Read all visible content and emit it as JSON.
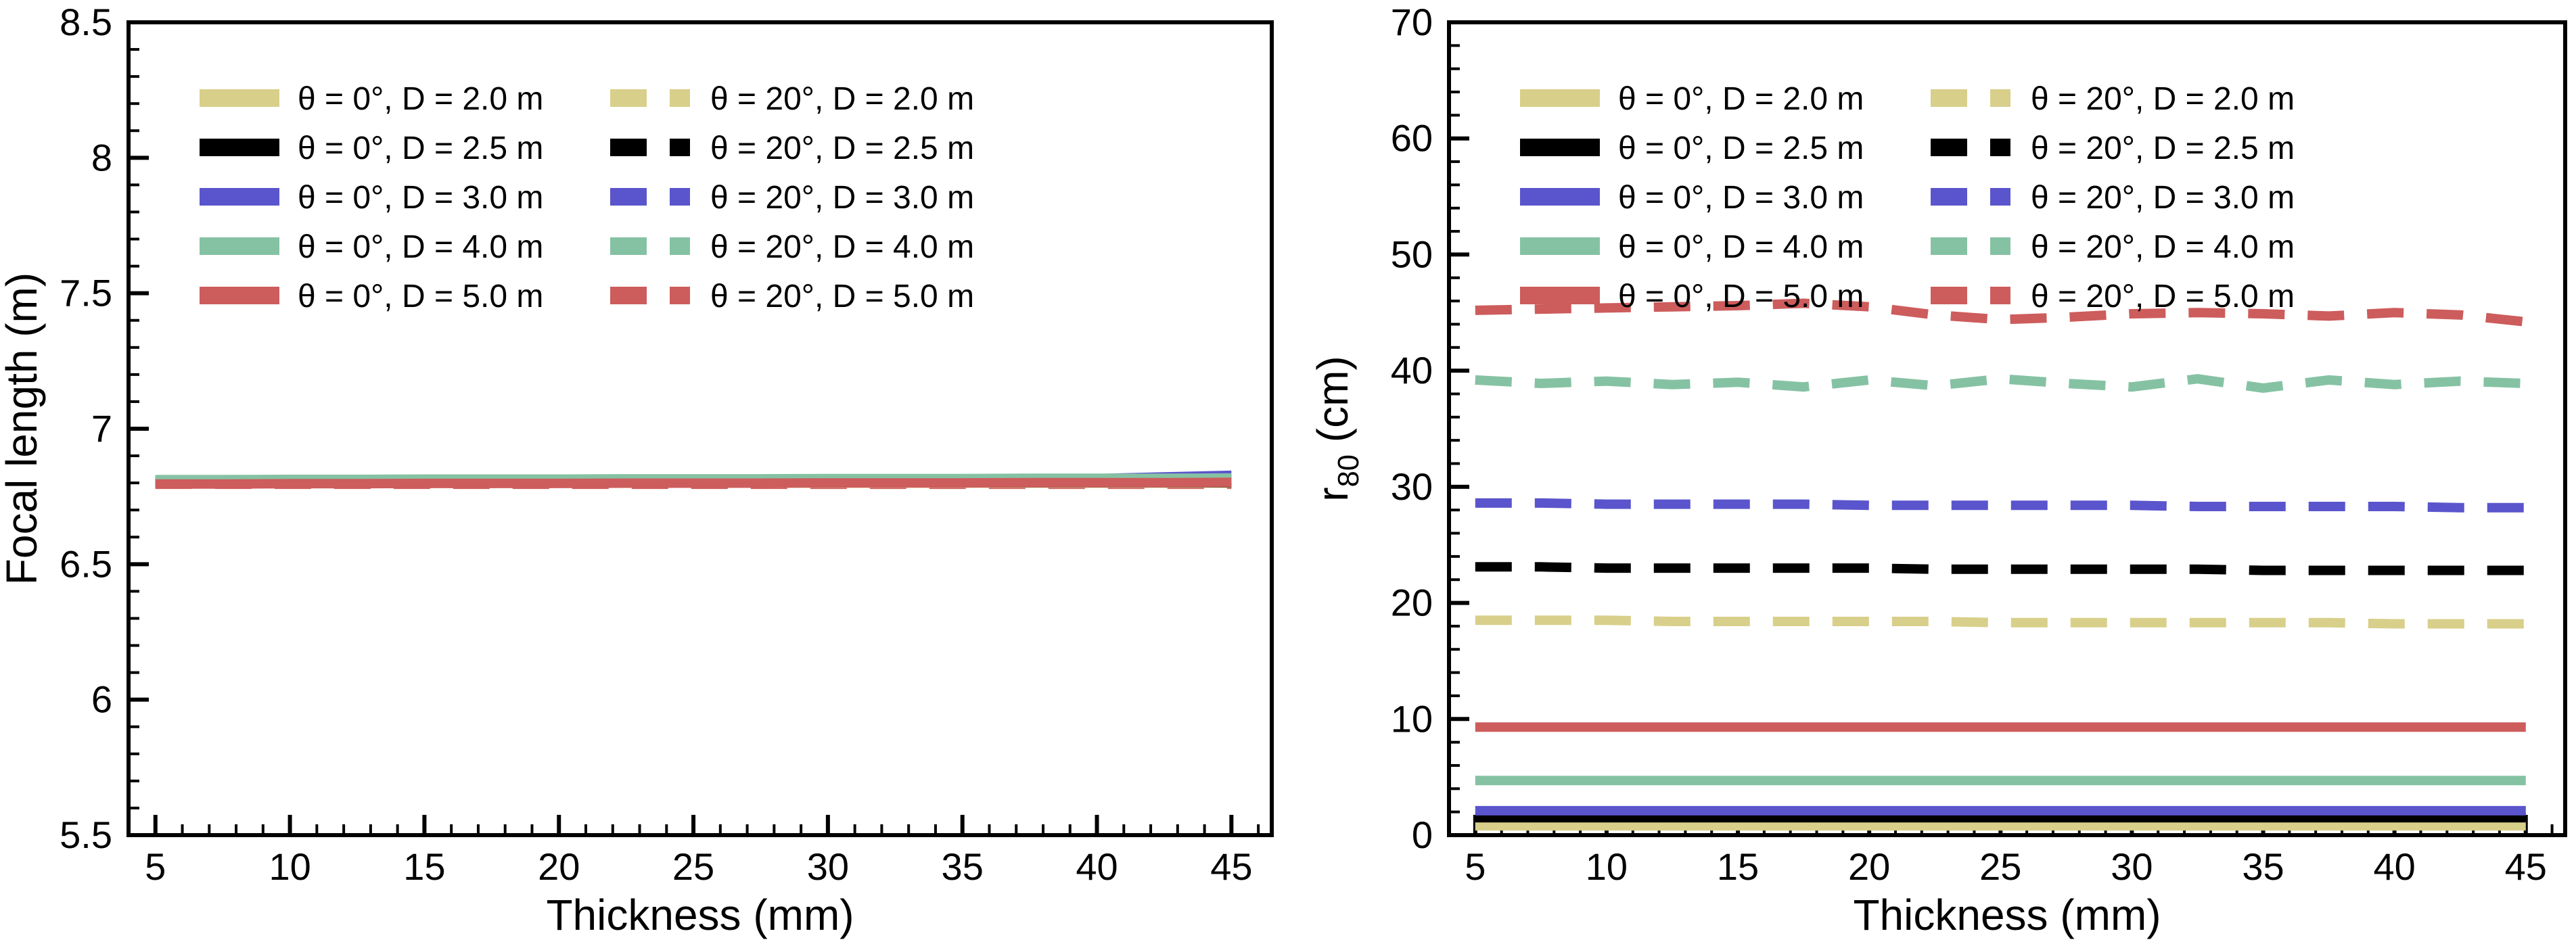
{
  "figure": {
    "background": "#ffffff",
    "frame_color": "#000000",
    "palette": {
      "D_2.0": "#d8cf8a",
      "D_2.5": "#000000",
      "D_3.0": "#5a55cc",
      "D_4.0": "#85c2a3",
      "D_5.0": "#cd5c5c"
    }
  },
  "chart_data": [
    {
      "type": "line",
      "title": "",
      "xlabel": "Thickness (mm)",
      "ylabel_parts": {
        "base": "Focal length (m)",
        "sub": "",
        "rest": ""
      },
      "xlim": [
        4,
        46.5
      ],
      "ylim": [
        5.5,
        8.5
      ],
      "grid": false,
      "x_ticks": [
        5,
        10,
        15,
        20,
        25,
        30,
        35,
        40,
        45
      ],
      "x_tick_labels": [
        "5",
        "10",
        "15",
        "20",
        "25",
        "30",
        "35",
        "40",
        "45"
      ],
      "x_minor_step": 1,
      "y_ticks": [
        5.5,
        6,
        6.5,
        7,
        7.5,
        8,
        8.5
      ],
      "y_tick_labels": [
        "5.5",
        "6",
        "6.5",
        "7",
        "7.5",
        "8",
        "8.5"
      ],
      "y_minor_step": 0.1,
      "x": [
        5,
        7.5,
        10,
        12.5,
        15,
        17.5,
        20,
        22.5,
        25,
        27.5,
        30,
        32.5,
        35,
        37.5,
        40,
        42.5,
        45
      ],
      "series": [
        {
          "id": "theta20-d2.0",
          "label": "θ = 20°, D = 2.0 m",
          "color": "#d8cf8a",
          "dash": true,
          "values": [
            6.798,
            6.798,
            6.798,
            6.798,
            6.798,
            6.798,
            6.798,
            6.798,
            6.798,
            6.798,
            6.798,
            6.798,
            6.798,
            6.798,
            6.798,
            6.798,
            6.798
          ]
        },
        {
          "id": "theta20-d2.5",
          "label": "θ = 20°, D = 2.5 m",
          "color": "#000000",
          "dash": true,
          "values": [
            6.8,
            6.8,
            6.8,
            6.8,
            6.8,
            6.8,
            6.8,
            6.8,
            6.8,
            6.8,
            6.8,
            6.8,
            6.8,
            6.8,
            6.8,
            6.8,
            6.8
          ]
        },
        {
          "id": "theta20-d3.0",
          "label": "θ = 20°, D = 3.0 m",
          "color": "#5a55cc",
          "dash": true,
          "values": [
            6.805,
            6.805,
            6.805,
            6.805,
            6.805,
            6.805,
            6.805,
            6.805,
            6.805,
            6.805,
            6.805,
            6.805,
            6.805,
            6.805,
            6.805,
            6.805,
            6.805
          ]
        },
        {
          "id": "theta20-d4.0",
          "label": "θ = 20°, D = 4.0 m",
          "color": "#85c2a3",
          "dash": true,
          "values": [
            6.81,
            6.81,
            6.81,
            6.81,
            6.81,
            6.81,
            6.81,
            6.81,
            6.81,
            6.81,
            6.81,
            6.81,
            6.81,
            6.81,
            6.81,
            6.81,
            6.81
          ]
        },
        {
          "id": "theta20-d5.0",
          "label": "θ = 20°, D = 5.0 m",
          "color": "#cd5c5c",
          "dash": true,
          "values": [
            6.795,
            6.795,
            6.795,
            6.795,
            6.795,
            6.795,
            6.795,
            6.795,
            6.795,
            6.795,
            6.795,
            6.795,
            6.795,
            6.795,
            6.795,
            6.795,
            6.795
          ]
        },
        {
          "id": "theta0-d2.0",
          "label": "θ = 0°, D = 2.0 m",
          "color": "#d8cf8a",
          "dash": false,
          "values": [
            6.799,
            6.799,
            6.799,
            6.799,
            6.799,
            6.799,
            6.799,
            6.799,
            6.799,
            6.799,
            6.799,
            6.799,
            6.799,
            6.799,
            6.799,
            6.799,
            6.799
          ]
        },
        {
          "id": "theta0-d2.5",
          "label": "θ = 0°, D = 2.5 m",
          "color": "#000000",
          "dash": false,
          "values": [
            6.801,
            6.801,
            6.801,
            6.801,
            6.801,
            6.801,
            6.801,
            6.801,
            6.801,
            6.801,
            6.801,
            6.801,
            6.801,
            6.801,
            6.801,
            6.801,
            6.801
          ]
        },
        {
          "id": "theta0-d3.0",
          "label": "θ = 0°, D = 3.0 m",
          "color": "#5a55cc",
          "dash": false,
          "values": [
            6.81,
            6.81,
            6.81,
            6.81,
            6.81,
            6.81,
            6.81,
            6.81,
            6.81,
            6.81,
            6.81,
            6.81,
            6.81,
            6.812,
            6.816,
            6.822,
            6.828
          ]
        },
        {
          "id": "theta0-d4.0",
          "label": "θ = 0°, D = 4.0 m",
          "color": "#85c2a3",
          "dash": false,
          "values": [
            6.812,
            6.812,
            6.813,
            6.813,
            6.814,
            6.814,
            6.814,
            6.815,
            6.815,
            6.815,
            6.816,
            6.816,
            6.816,
            6.817,
            6.817,
            6.817,
            6.818
          ]
        },
        {
          "id": "theta0-d5.0",
          "label": "θ = 0°, D = 5.0 m",
          "color": "#cd5c5c",
          "dash": false,
          "values": [
            6.796,
            6.796,
            6.797,
            6.797,
            6.798,
            6.798,
            6.798,
            6.799,
            6.799,
            6.799,
            6.8,
            6.8,
            6.8,
            6.801,
            6.801,
            6.801,
            6.802
          ]
        }
      ],
      "legend": {
        "position": "top-left-inside",
        "col1": [
          {
            "label": "θ = 0°, D = 2.0 m",
            "color": "#d8cf8a",
            "dash": false
          },
          {
            "label": "θ = 0°, D = 2.5 m",
            "color": "#000000",
            "dash": false
          },
          {
            "label": "θ = 0°, D = 3.0 m",
            "color": "#5a55cc",
            "dash": false
          },
          {
            "label": "θ = 0°, D = 4.0 m",
            "color": "#85c2a3",
            "dash": false
          },
          {
            "label": "θ = 0°, D = 5.0 m",
            "color": "#cd5c5c",
            "dash": false
          }
        ],
        "col2": [
          {
            "label": "θ = 20°, D = 2.0 m",
            "color": "#d8cf8a",
            "dash": true
          },
          {
            "label": "θ = 20°, D = 2.5 m",
            "color": "#000000",
            "dash": true
          },
          {
            "label": "θ = 20°, D = 3.0 m",
            "color": "#5a55cc",
            "dash": true
          },
          {
            "label": "θ = 20°, D = 4.0 m",
            "color": "#85c2a3",
            "dash": true
          },
          {
            "label": "θ = 20°, D = 5.0 m",
            "color": "#cd5c5c",
            "dash": true
          }
        ]
      }
    },
    {
      "type": "line",
      "title": "",
      "xlabel": "Thickness (mm)",
      "ylabel_parts": {
        "base": "r",
        "sub": "80",
        "rest": " (cm)"
      },
      "xlim": [
        4,
        46.5
      ],
      "ylim": [
        0,
        70
      ],
      "grid": false,
      "x_ticks": [
        5,
        10,
        15,
        20,
        25,
        30,
        35,
        40,
        45
      ],
      "x_tick_labels": [
        "5",
        "10",
        "15",
        "20",
        "25",
        "30",
        "35",
        "40",
        "45"
      ],
      "x_minor_step": 1,
      "y_ticks": [
        0,
        10,
        20,
        30,
        40,
        50,
        60,
        70
      ],
      "y_tick_labels": [
        "0",
        "10",
        "20",
        "30",
        "40",
        "50",
        "60",
        "70"
      ],
      "y_minor_step": 2,
      "x": [
        5,
        7.5,
        10,
        12.5,
        15,
        17.5,
        20,
        22.5,
        25,
        27.5,
        30,
        32.5,
        35,
        37.5,
        40,
        42.5,
        45
      ],
      "series": [
        {
          "id": "theta20-d2.0",
          "label": "θ = 20°, D = 2.0 m",
          "color": "#d8cf8a",
          "dash": true,
          "values": [
            18.5,
            18.5,
            18.5,
            18.4,
            18.4,
            18.4,
            18.4,
            18.4,
            18.3,
            18.3,
            18.3,
            18.3,
            18.3,
            18.3,
            18.2,
            18.2,
            18.2
          ]
        },
        {
          "id": "theta20-d2.5",
          "label": "θ = 20°, D = 2.5 m",
          "color": "#000000",
          "dash": true,
          "values": [
            23.1,
            23.1,
            23.0,
            23.0,
            23.0,
            23.0,
            23.0,
            22.9,
            22.9,
            22.9,
            22.9,
            22.9,
            22.8,
            22.8,
            22.8,
            22.8,
            22.8
          ]
        },
        {
          "id": "theta20-d3.0",
          "label": "θ = 20°, D = 3.0 m",
          "color": "#5a55cc",
          "dash": true,
          "values": [
            28.6,
            28.6,
            28.5,
            28.5,
            28.5,
            28.5,
            28.4,
            28.4,
            28.4,
            28.4,
            28.4,
            28.3,
            28.3,
            28.3,
            28.3,
            28.2,
            28.2
          ]
        },
        {
          "id": "theta20-d4.0",
          "label": "θ = 20°, D = 4.0 m",
          "color": "#85c2a3",
          "dash": true,
          "values": [
            39.2,
            38.9,
            39.1,
            38.8,
            39.0,
            38.6,
            39.2,
            38.7,
            39.3,
            38.9,
            38.6,
            39.3,
            38.5,
            39.2,
            38.8,
            39.1,
            38.9
          ]
        },
        {
          "id": "theta20-d5.0",
          "label": "θ = 20°, D = 5.0 m",
          "color": "#cd5c5c",
          "dash": true,
          "values": [
            45.2,
            45.3,
            45.4,
            45.5,
            45.6,
            45.8,
            45.5,
            44.8,
            44.4,
            44.6,
            44.9,
            45.0,
            44.9,
            44.7,
            45.0,
            44.8,
            44.2
          ]
        },
        {
          "id": "theta0-d2.0",
          "label": "θ = 0°, D = 2.0 m",
          "color": "#d8cf8a",
          "dash": false,
          "values": [
            0.8,
            0.8,
            0.8,
            0.8,
            0.8,
            0.8,
            0.8,
            0.8,
            0.8,
            0.8,
            0.8,
            0.8,
            0.8,
            0.8,
            0.8,
            0.8,
            0.8
          ]
        },
        {
          "id": "theta0-d2.5",
          "label": "θ = 0°, D = 2.5 m",
          "color": "#000000",
          "dash": false,
          "values": [
            1.5,
            1.5,
            1.5,
            1.5,
            1.5,
            1.5,
            1.5,
            1.5,
            1.5,
            1.5,
            1.5,
            1.5,
            1.5,
            1.5,
            1.5,
            1.5,
            1.5
          ]
        },
        {
          "id": "theta0-d3.0",
          "label": "θ = 0°, D = 3.0 m",
          "color": "#5a55cc",
          "dash": false,
          "values": [
            2.1,
            2.1,
            2.1,
            2.1,
            2.1,
            2.1,
            2.1,
            2.1,
            2.1,
            2.1,
            2.1,
            2.1,
            2.1,
            2.1,
            2.1,
            2.1,
            2.1
          ]
        },
        {
          "id": "theta0-d4.0",
          "label": "θ = 0°, D = 4.0 m",
          "color": "#85c2a3",
          "dash": false,
          "values": [
            4.7,
            4.7,
            4.7,
            4.7,
            4.7,
            4.7,
            4.7,
            4.7,
            4.7,
            4.7,
            4.7,
            4.7,
            4.7,
            4.7,
            4.7,
            4.7,
            4.7
          ]
        },
        {
          "id": "theta0-d5.0",
          "label": "θ = 0°, D = 5.0 m",
          "color": "#cd5c5c",
          "dash": false,
          "values": [
            9.3,
            9.3,
            9.3,
            9.3,
            9.3,
            9.3,
            9.3,
            9.3,
            9.3,
            9.3,
            9.3,
            9.3,
            9.3,
            9.3,
            9.3,
            9.3,
            9.3
          ]
        }
      ],
      "legend": {
        "position": "top-left-inside",
        "col1": [
          {
            "label": "θ = 0°, D = 2.0 m",
            "color": "#d8cf8a",
            "dash": false
          },
          {
            "label": "θ = 0°, D = 2.5 m",
            "color": "#000000",
            "dash": false
          },
          {
            "label": "θ = 0°, D = 3.0 m",
            "color": "#5a55cc",
            "dash": false
          },
          {
            "label": "θ = 0°, D = 4.0 m",
            "color": "#85c2a3",
            "dash": false
          },
          {
            "label": "θ = 0°, D = 5.0 m",
            "color": "#cd5c5c",
            "dash": false
          }
        ],
        "col2": [
          {
            "label": "θ = 20°, D = 2.0 m",
            "color": "#d8cf8a",
            "dash": true
          },
          {
            "label": "θ = 20°, D = 2.5 m",
            "color": "#000000",
            "dash": true
          },
          {
            "label": "θ = 20°, D = 3.0 m",
            "color": "#5a55cc",
            "dash": true
          },
          {
            "label": "θ = 20°, D = 4.0 m",
            "color": "#85c2a3",
            "dash": true
          },
          {
            "label": "θ = 20°, D = 5.0 m",
            "color": "#cd5c5c",
            "dash": true
          }
        ]
      }
    }
  ]
}
